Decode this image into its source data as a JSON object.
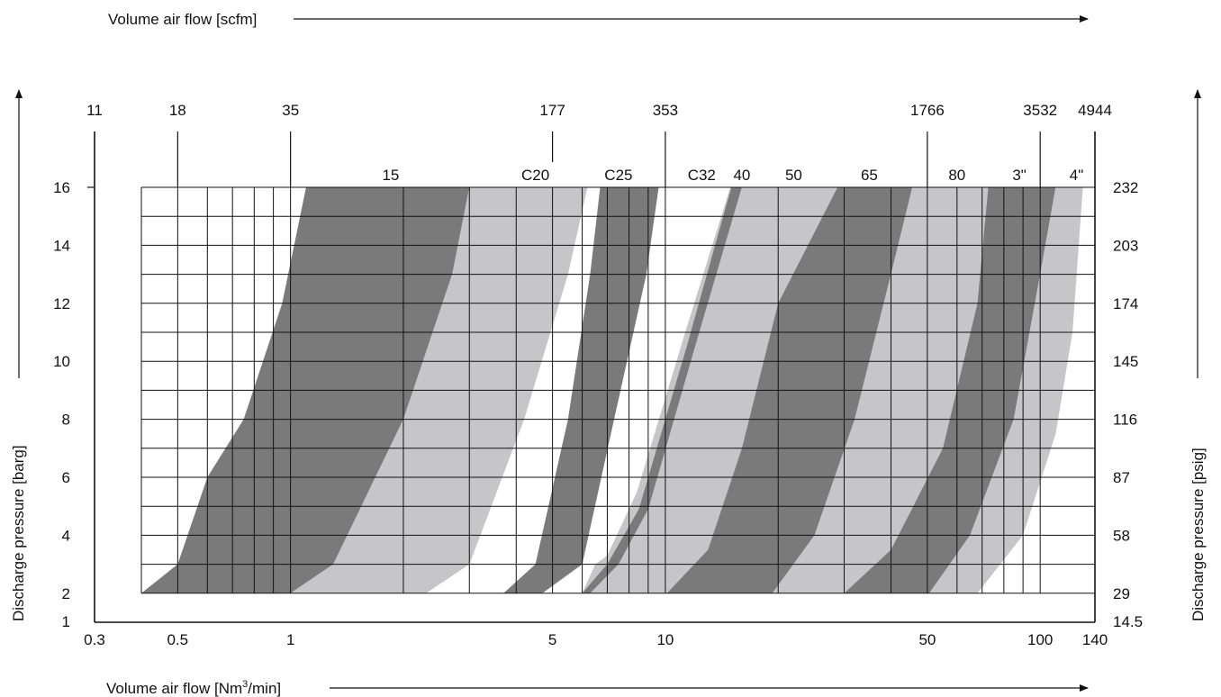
{
  "chart_data": {
    "type": "area",
    "title": "",
    "top_axis_label": "Volume air flow [scfm]",
    "bottom_axis_label": "Volume air flow [Nm³/min]",
    "bottom_axis_label_base": "Volume air flow [Nm",
    "bottom_axis_label_sup": "3",
    "bottom_axis_label_end": "/min]",
    "left_axis_label": "Discharge pressure [barg]",
    "right_axis_label": "Discharge pressure [psig]",
    "x_scale": "log",
    "xlim": [
      0.3,
      140
    ],
    "ylim": [
      1,
      16
    ],
    "grid": true,
    "bottom_ticks": [
      {
        "value": 0.3,
        "label": "0.3"
      },
      {
        "value": 0.5,
        "label": "0.5"
      },
      {
        "value": 1,
        "label": "1"
      },
      {
        "value": 5,
        "label": "5"
      },
      {
        "value": 10,
        "label": "10"
      },
      {
        "value": 50,
        "label": "50"
      },
      {
        "value": 100,
        "label": "100"
      },
      {
        "value": 140,
        "label": "140"
      }
    ],
    "top_ticks": [
      {
        "value": 0.3,
        "label": "11"
      },
      {
        "value": 0.5,
        "label": "18"
      },
      {
        "value": 1,
        "label": "35"
      },
      {
        "value": 5,
        "label": "177"
      },
      {
        "value": 10,
        "label": "353"
      },
      {
        "value": 50,
        "label": "1766"
      },
      {
        "value": 100,
        "label": "3532"
      },
      {
        "value": 140,
        "label": "4944"
      }
    ],
    "left_ticks": [
      {
        "value": 1,
        "label": "1"
      },
      {
        "value": 2,
        "label": "2"
      },
      {
        "value": 4,
        "label": "4"
      },
      {
        "value": 6,
        "label": "6"
      },
      {
        "value": 8,
        "label": "8"
      },
      {
        "value": 10,
        "label": "10"
      },
      {
        "value": 12,
        "label": "12"
      },
      {
        "value": 14,
        "label": "14"
      },
      {
        "value": 16,
        "label": "16"
      }
    ],
    "right_ticks": [
      {
        "value": 1,
        "label": "14.5"
      },
      {
        "value": 2,
        "label": "29"
      },
      {
        "value": 4,
        "label": "58"
      },
      {
        "value": 6,
        "label": "87"
      },
      {
        "value": 8,
        "label": "116"
      },
      {
        "value": 10,
        "label": "145"
      },
      {
        "value": 12,
        "label": "174"
      },
      {
        "value": 14,
        "label": "203"
      },
      {
        "value": 16,
        "label": "232"
      }
    ],
    "grid_x": [
      0.4,
      0.5,
      0.6,
      0.7,
      0.8,
      0.9,
      1,
      2,
      3,
      4,
      5,
      6,
      7,
      8,
      9,
      10,
      20,
      30,
      40,
      50,
      60,
      70,
      80,
      90,
      100
    ],
    "grid_y": [
      2,
      3,
      4,
      5,
      6,
      7,
      8,
      9,
      10,
      11,
      12,
      13,
      14,
      15,
      16
    ],
    "series": [
      {
        "name": "15",
        "label_x": 1.85,
        "color": "#7a7a7a",
        "lower": [
          [
            0.4,
            2
          ],
          [
            0.5,
            3
          ],
          [
            0.6,
            6
          ],
          [
            0.75,
            8
          ],
          [
            0.95,
            12
          ],
          [
            1.1,
            16
          ]
        ],
        "upper": [
          [
            1,
            2
          ],
          [
            1.3,
            3
          ],
          [
            2.0,
            8
          ],
          [
            2.7,
            13
          ],
          [
            3.0,
            16
          ]
        ]
      },
      {
        "name": "C20",
        "label_x": 4.5,
        "color": "#c6c6c8",
        "lower": [
          [
            1,
            2
          ],
          [
            1.3,
            3
          ],
          [
            2.0,
            8
          ],
          [
            2.7,
            13
          ],
          [
            3.0,
            16
          ]
        ],
        "upper": [
          [
            2.3,
            2
          ],
          [
            3.0,
            3
          ],
          [
            4.2,
            8
          ],
          [
            5.5,
            13
          ],
          [
            6.2,
            16
          ]
        ]
      },
      {
        "name": "C25",
        "label_x": 7.5,
        "color": "#7a7a7a",
        "lower": [
          [
            3.7,
            2
          ],
          [
            4.5,
            3
          ],
          [
            5.5,
            8
          ],
          [
            6.3,
            13
          ],
          [
            6.7,
            16
          ]
        ],
        "upper": [
          [
            4.7,
            2
          ],
          [
            6.0,
            3
          ],
          [
            7.3,
            8
          ],
          [
            8.9,
            13
          ],
          [
            9.6,
            16
          ]
        ]
      },
      {
        "name": "C32",
        "label_x": 12.5,
        "color": "#c6c6c8",
        "lower": [
          [
            6.0,
            2
          ],
          [
            6.5,
            3
          ],
          [
            7.0,
            3.3
          ],
          [
            8.4,
            5.5
          ],
          [
            11.3,
            11
          ],
          [
            14.9,
            16
          ]
        ],
        "upper": [
          [
            10.1,
            2
          ],
          [
            13,
            3.5
          ],
          [
            15,
            6.5
          ],
          [
            16,
            8
          ],
          [
            19,
            13
          ],
          [
            22,
            16
          ]
        ]
      },
      {
        "name": "40",
        "label_x": 16,
        "color": "#7a7a7a",
        "lower": [
          [
            6.0,
            2
          ],
          [
            7.0,
            3.0
          ],
          [
            8.5,
            4.9
          ],
          [
            11.4,
            10.5
          ],
          [
            15.0,
            16
          ]
        ],
        "upper": [
          [
            6.3,
            2
          ],
          [
            7.5,
            3.0
          ],
          [
            9.0,
            4.9
          ],
          [
            12.0,
            10.5
          ],
          [
            16.0,
            16
          ]
        ]
      },
      {
        "name": "50",
        "label_x": 22,
        "color": "#c6c6c8",
        "lower": [
          [
            6.3,
            2
          ],
          [
            7.5,
            3.0
          ],
          [
            9.0,
            4.9
          ],
          [
            12.0,
            10.5
          ],
          [
            16.0,
            16
          ]
        ],
        "upper": [
          [
            10.1,
            2
          ],
          [
            13.0,
            3.5
          ],
          [
            16.0,
            7.0
          ],
          [
            20.0,
            12.0
          ],
          [
            28.8,
            16
          ]
        ]
      },
      {
        "name": "65",
        "label_x": 35,
        "color": "#7a7a7a",
        "lower": [
          [
            10.1,
            2
          ],
          [
            13.0,
            3.5
          ],
          [
            16.0,
            7.0
          ],
          [
            20.0,
            12.0
          ],
          [
            28.8,
            16
          ]
        ],
        "upper": [
          [
            19.3,
            2
          ],
          [
            25.0,
            4.0
          ],
          [
            32.0,
            8.0
          ],
          [
            40.0,
            13.0
          ],
          [
            45.6,
            16
          ]
        ]
      },
      {
        "name": "80",
        "label_x": 60,
        "color": "#c6c6c8",
        "lower": [
          [
            19.3,
            2
          ],
          [
            25.0,
            4.0
          ],
          [
            32.0,
            8.0
          ],
          [
            40.0,
            13.0
          ],
          [
            45.6,
            16
          ]
        ],
        "upper": [
          [
            30.0,
            2
          ],
          [
            40.0,
            3.5
          ],
          [
            55.0,
            7.0
          ],
          [
            68.0,
            12.0
          ],
          [
            72.7,
            16
          ]
        ]
      },
      {
        "name": "3\"",
        "label_x": 88,
        "color": "#7a7a7a",
        "lower": [
          [
            30.0,
            2
          ],
          [
            40.0,
            3.5
          ],
          [
            55.0,
            7.0
          ],
          [
            68.0,
            12.0
          ],
          [
            72.7,
            16
          ]
        ],
        "upper": [
          [
            50.6,
            2
          ],
          [
            65.0,
            4.0
          ],
          [
            85.0,
            8.0
          ],
          [
            100.0,
            13.0
          ],
          [
            110.0,
            16
          ]
        ]
      },
      {
        "name": "4\"",
        "label_x": 125,
        "color": "#c6c6c8",
        "lower": [
          [
            50.6,
            2
          ],
          [
            65.0,
            4.0
          ],
          [
            85.0,
            8.0
          ],
          [
            100.0,
            13.0
          ],
          [
            110.0,
            16
          ]
        ],
        "upper": [
          [
            68.0,
            2
          ],
          [
            90.0,
            4.0
          ],
          [
            110.0,
            7.5
          ],
          [
            122.0,
            11.0
          ],
          [
            130.0,
            16
          ]
        ]
      }
    ]
  }
}
